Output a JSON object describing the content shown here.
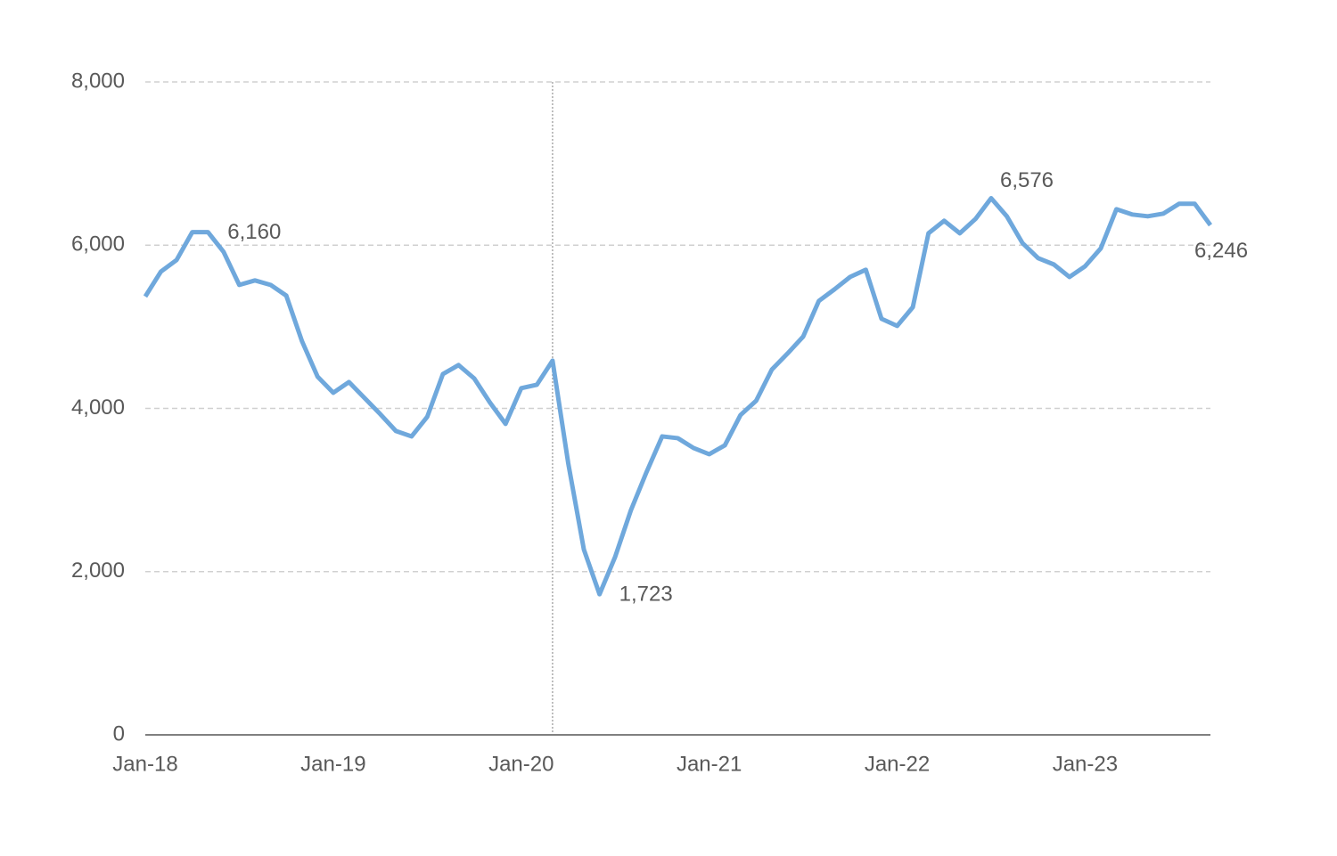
{
  "chart_data": {
    "type": "line",
    "categories": [
      "Jan-18",
      null,
      null,
      null,
      null,
      null,
      null,
      null,
      null,
      null,
      null,
      null,
      "Jan-19",
      null,
      null,
      null,
      null,
      null,
      null,
      null,
      null,
      null,
      null,
      null,
      "Jan-20",
      null,
      null,
      null,
      null,
      null,
      null,
      null,
      null,
      null,
      null,
      null,
      "Jan-21",
      null,
      null,
      null,
      null,
      null,
      null,
      null,
      null,
      null,
      null,
      null,
      "Jan-22",
      null,
      null,
      null,
      null,
      null,
      null,
      null,
      null,
      null,
      null,
      null,
      "Jan-23",
      null,
      null,
      null,
      null,
      null,
      null,
      null,
      null
    ],
    "series": [
      {
        "color": "#6fa8dc",
        "values": [
          5371,
          5677,
          5819,
          6160,
          6160,
          5917,
          5513,
          5568,
          5513,
          5382,
          4825,
          4389,
          4192,
          4323,
          4127,
          3930,
          3723,
          3657,
          3897,
          4421,
          4531,
          4367,
          4072,
          3810,
          4247,
          4290,
          4585,
          3330,
          2271,
          1723,
          2183,
          2751,
          3220,
          3657,
          3635,
          3515,
          3439,
          3548,
          3919,
          4094,
          4476,
          4672,
          4880,
          5317,
          5459,
          5611,
          5699,
          5098,
          5011,
          5240,
          6146,
          6299,
          6146,
          6321,
          6576,
          6354,
          6026,
          5841,
          5764,
          5611,
          5742,
          5961,
          6441,
          6376,
          6354,
          6387,
          6507,
          6507,
          6246
        ],
        "value_labels": [
          null,
          null,
          null,
          null,
          "6,160",
          null,
          null,
          null,
          null,
          null,
          null,
          null,
          null,
          null,
          null,
          null,
          null,
          null,
          null,
          null,
          null,
          null,
          null,
          null,
          null,
          null,
          null,
          null,
          null,
          "1,723",
          null,
          null,
          null,
          null,
          null,
          null,
          null,
          null,
          null,
          null,
          null,
          null,
          null,
          null,
          null,
          null,
          null,
          null,
          null,
          null,
          null,
          null,
          null,
          null,
          "6,576",
          null,
          null,
          null,
          null,
          null,
          null,
          null,
          null,
          null,
          null,
          null,
          null,
          null,
          "6,246"
        ]
      }
    ],
    "ylim": [
      0,
      8000
    ],
    "yticks": [
      0,
      {
        "value": 2000,
        "label": "2,000"
      },
      {
        "value": 4000,
        "label": "4,000"
      },
      {
        "value": 6000,
        "label": "6,000"
      },
      {
        "value": 8000,
        "label": "8,000"
      }
    ],
    "grid": true
  }
}
